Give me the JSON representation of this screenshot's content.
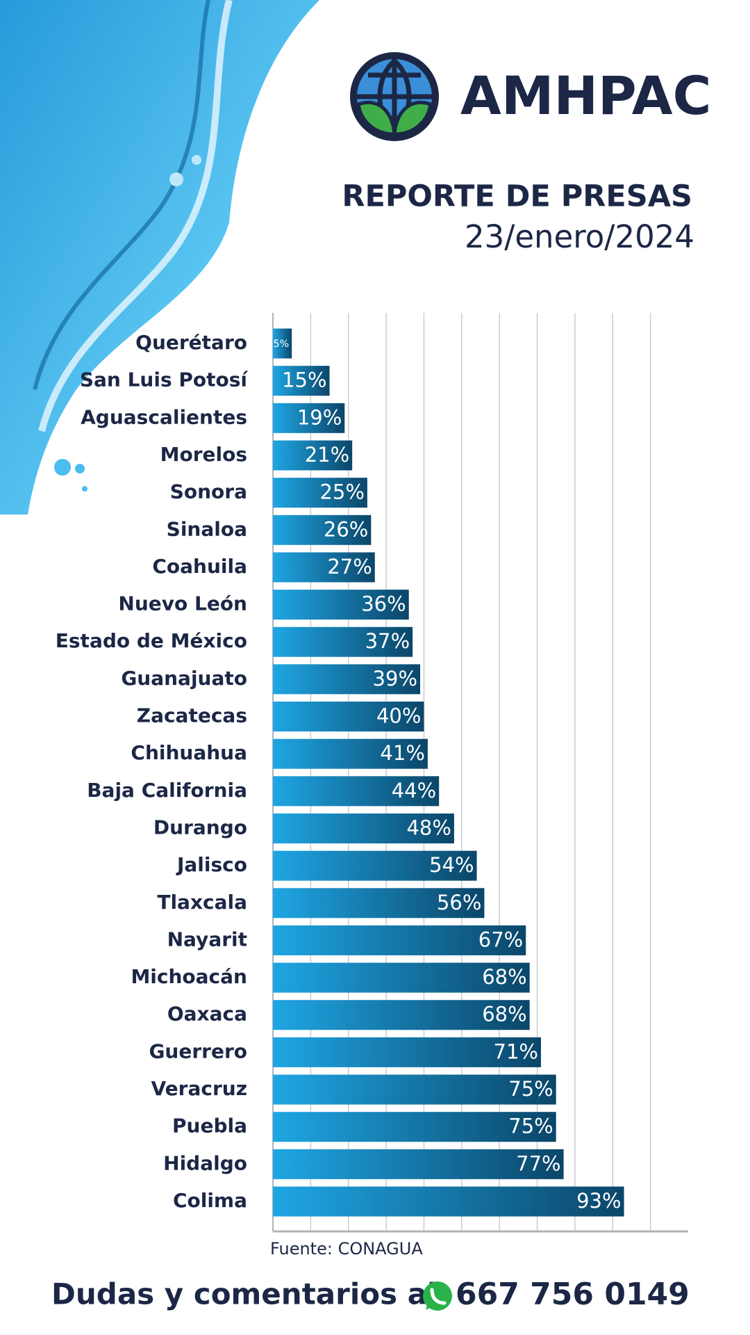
{
  "header": {
    "brand": "AMHPAC"
  },
  "chart_data": {
    "type": "bar",
    "orientation": "horizontal",
    "title": "REPORTE DE PRESAS",
    "subtitle": "23/enero/2024",
    "categories": [
      "Querétaro",
      "San Luis Potosí",
      "Aguascalientes",
      "Morelos",
      "Sonora",
      "Sinaloa",
      "Coahuila",
      "Nuevo León",
      "Estado de México",
      "Guanajuato",
      "Zacatecas",
      "Chihuahua",
      "Baja California",
      "Durango",
      "Jalisco",
      "Tlaxcala",
      "Nayarit",
      "Michoacán",
      "Oaxaca",
      "Guerrero",
      "Veracruz",
      "Puebla",
      "Hidalgo",
      "Colima"
    ],
    "values": [
      5,
      15,
      19,
      21,
      25,
      26,
      27,
      36,
      37,
      39,
      40,
      41,
      44,
      48,
      54,
      56,
      67,
      68,
      68,
      71,
      75,
      75,
      77,
      93
    ],
    "value_labels": [
      "5%",
      "15%",
      "19%",
      "21%",
      "25%",
      "26%",
      "27%",
      "36%",
      "37%",
      "39%",
      "40%",
      "41%",
      "44%",
      "48%",
      "54%",
      "56%",
      "67%",
      "68%",
      "68%",
      "71%",
      "75%",
      "75%",
      "77%",
      "93%"
    ],
    "colors": [
      "#1fa6e4",
      "#0b4669"
    ],
    "xlim": [
      0,
      110
    ],
    "xticks": [
      0,
      10,
      20,
      30,
      40,
      50,
      60,
      70,
      80,
      90,
      100
    ],
    "grid": true,
    "source": "Fuente: CONAGUA"
  },
  "footer": {
    "text": "Dudas y comentarios al",
    "phone": "667 756 0149"
  }
}
